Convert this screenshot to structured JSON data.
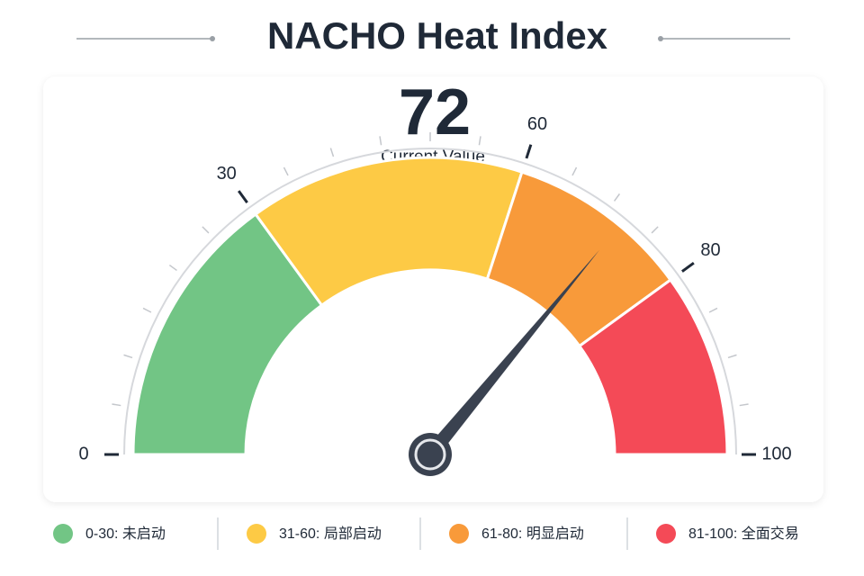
{
  "chart_data": {
    "type": "gauge",
    "title": "NACHO Heat Index",
    "value": 72,
    "value_caption": "Current Value",
    "range": [
      0,
      100
    ],
    "major_ticks": [
      0,
      30,
      60,
      80,
      100
    ],
    "minor_ticks": [
      5,
      10,
      15,
      20,
      25,
      35,
      40,
      45,
      50,
      55,
      65,
      70,
      75,
      85,
      90,
      95
    ],
    "value_color": "#f47b2a",
    "needle_color": "#3a4250",
    "bands": [
      {
        "from": 0,
        "to": 30,
        "color": "#72c585",
        "label": "0-30: 未启动"
      },
      {
        "from": 30,
        "to": 60,
        "color": "#fdca45",
        "label": "31-60: 局部启动"
      },
      {
        "from": 60,
        "to": 80,
        "color": "#f89a3a",
        "label": "61-80: 明显启动"
      },
      {
        "from": 80,
        "to": 100,
        "color": "#f44a57",
        "label": "81-100: 全面交易"
      }
    ]
  }
}
